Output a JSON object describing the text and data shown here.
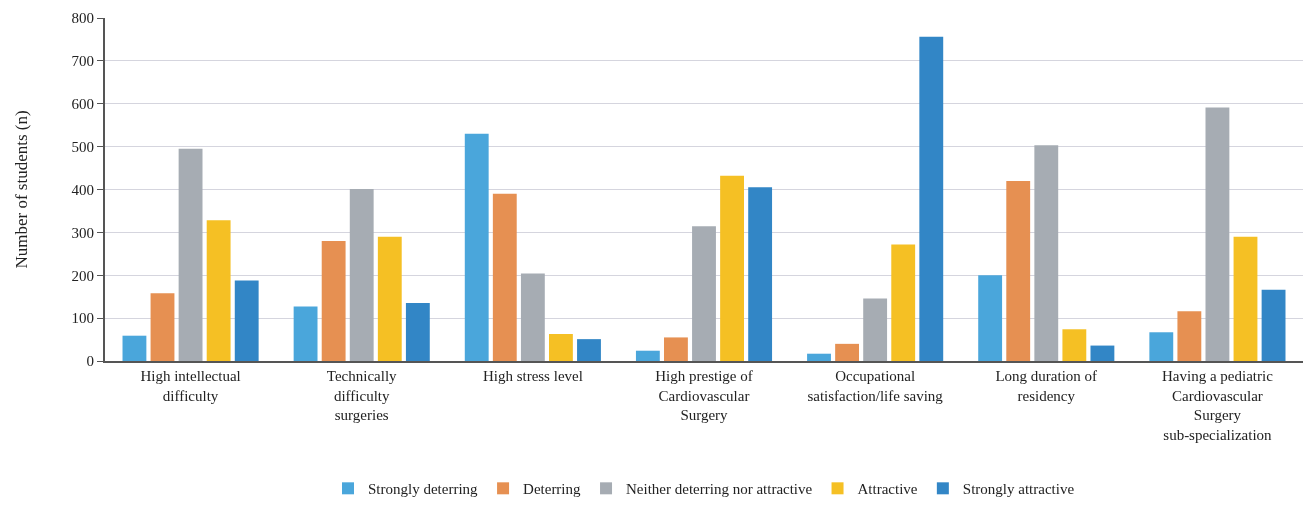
{
  "chart_data": {
    "type": "bar",
    "ylabel": "Number of students (n)",
    "categories": [
      "High intellectual\ndifficulty",
      "Technically\ndifficulty\nsurgeries",
      "High stress level",
      "High prestige of\nCardiovascular\nSurgery",
      "Occupational\nsatisfaction/life saving",
      "Long duration of\nresidency",
      "Having a pediatric\nCardiovascular\nSurgery\nsub-specialization"
    ],
    "series": [
      {
        "name": "Strongly deterring",
        "color": "#4aa6db",
        "values": [
          59,
          127,
          530,
          24,
          17,
          200,
          67
        ]
      },
      {
        "name": "Deterring",
        "color": "#e69052",
        "values": [
          158,
          280,
          390,
          55,
          40,
          420,
          116
        ]
      },
      {
        "name": "Neither deterring nor attractive",
        "color": "#a6acb3",
        "values": [
          495,
          401,
          204,
          314,
          146,
          503,
          591
        ]
      },
      {
        "name": "Attractive",
        "color": "#f5c024",
        "values": [
          328,
          290,
          63,
          432,
          272,
          74,
          290
        ]
      },
      {
        "name": "Strongly attractive",
        "color": "#3286c6",
        "values": [
          188,
          135,
          51,
          405,
          756,
          36,
          166
        ]
      }
    ],
    "ylim": [
      0,
      800
    ],
    "yticks": [
      0,
      100,
      200,
      300,
      400,
      500,
      600,
      700,
      800
    ],
    "grid": "y",
    "legend": "bottom"
  }
}
